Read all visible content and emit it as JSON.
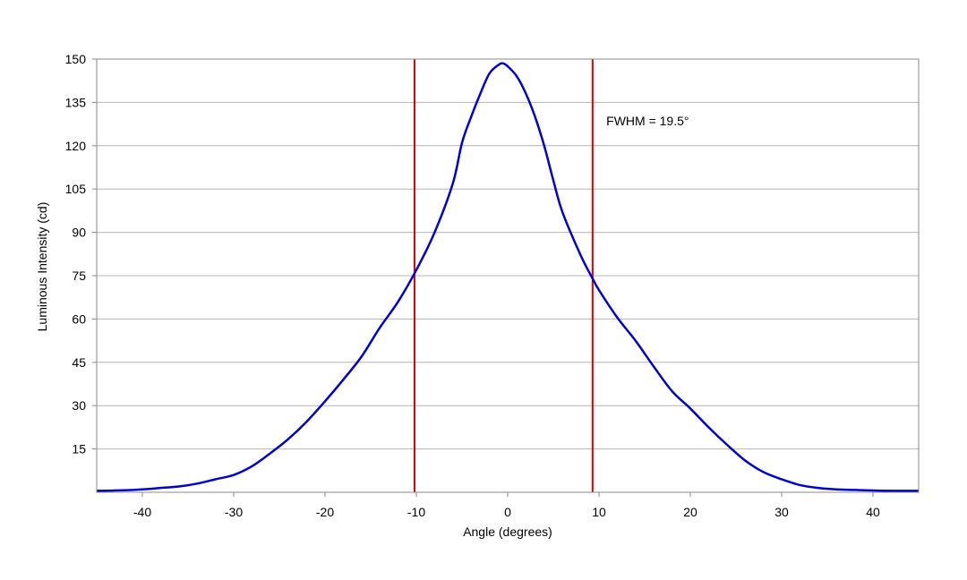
{
  "chart_data": {
    "type": "line",
    "title": "",
    "xlabel": "Angle (degrees)",
    "ylabel": "Luminous Intensity (cd)",
    "xlim": [
      -45,
      45
    ],
    "ylim": [
      0,
      150
    ],
    "xticks": [
      -40,
      -30,
      -20,
      -10,
      0,
      10,
      20,
      30,
      40
    ],
    "yticks": [
      15,
      30,
      45,
      60,
      75,
      90,
      105,
      120,
      135,
      150
    ],
    "grid": {
      "horizontal": true,
      "vertical": false
    },
    "series": [
      {
        "color": "#0000d0",
        "x": [
          -45,
          -42,
          -40,
          -38,
          -36,
          -34,
          -32,
          -30,
          -28,
          -26,
          -24,
          -22,
          -20,
          -18,
          -16,
          -14,
          -12,
          -10,
          -8,
          -6,
          -5,
          -4,
          -3,
          -2,
          -1,
          -0.5,
          0,
          1,
          2,
          3,
          4,
          5,
          6,
          8,
          9.3,
          10,
          12,
          14,
          16,
          18,
          20,
          22,
          24,
          26,
          28,
          30,
          32,
          34,
          36,
          38,
          40,
          42,
          45
        ],
        "y": [
          0.5,
          0.7,
          1.0,
          1.5,
          2.0,
          3.0,
          4.5,
          6.0,
          9.0,
          13.5,
          18.5,
          24.5,
          31.5,
          39.0,
          47.0,
          57.0,
          66.0,
          77.0,
          90.0,
          107.0,
          121.0,
          130.0,
          138.0,
          145.0,
          148.0,
          148.5,
          147.5,
          144.0,
          138.0,
          130.0,
          120.0,
          108.0,
          97.0,
          82.0,
          74.0,
          70.0,
          60.5,
          52.5,
          43.5,
          35.0,
          29.0,
          22.5,
          16.5,
          11.0,
          7.0,
          4.5,
          2.5,
          1.5,
          1.0,
          0.8,
          0.6,
          0.5,
          0.5
        ]
      }
    ],
    "markers": [
      {
        "x": -10.2,
        "color": "#e00000"
      },
      {
        "x": 9.3,
        "color": "#e00000"
      }
    ],
    "annotations": [
      {
        "text": "FWHM = 19.5°",
        "x": 10.8,
        "y": 127
      }
    ]
  }
}
